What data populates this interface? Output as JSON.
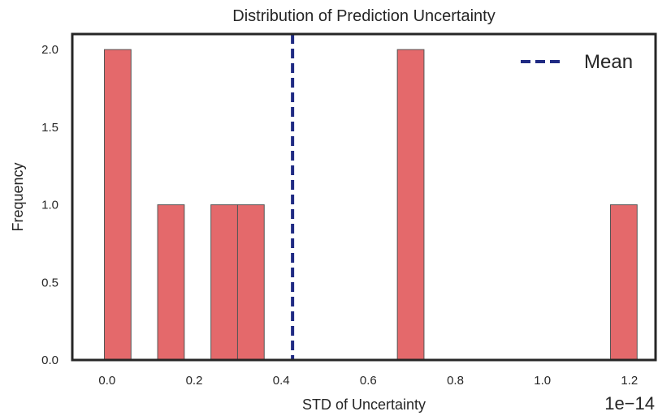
{
  "chart_data": {
    "type": "bar",
    "title": "Distribution of Prediction Uncertainty",
    "xlabel": "STD of Uncertainty",
    "ylabel": "Frequency",
    "x_offset_label": "1e−14",
    "xlim": [
      -0.08,
      1.26
    ],
    "ylim": [
      0,
      2.1
    ],
    "xticks": [
      0.0,
      0.2,
      0.4,
      0.6,
      0.8,
      1.0,
      1.2
    ],
    "xtick_labels": [
      "0.0",
      "0.2",
      "0.4",
      "0.6",
      "0.8",
      "1.0",
      "1.2"
    ],
    "yticks": [
      0.0,
      0.5,
      1.0,
      1.5,
      2.0
    ],
    "ytick_labels": [
      "0.0",
      "0.5",
      "1.0",
      "1.5",
      "2.0"
    ],
    "bins": [
      {
        "x0": -0.0063,
        "x1": 0.0549,
        "count": 2
      },
      {
        "x0": 0.1161,
        "x1": 0.1773,
        "count": 1
      },
      {
        "x0": 0.2385,
        "x1": 0.2997,
        "count": 1
      },
      {
        "x0": 0.2997,
        "x1": 0.3609,
        "count": 1
      },
      {
        "x0": 0.6668,
        "x1": 0.728,
        "count": 2
      },
      {
        "x0": 1.1564,
        "x1": 1.2176,
        "count": 1
      }
    ],
    "mean_line": {
      "x": 0.426,
      "label": "Mean",
      "color": "#1f2a83"
    },
    "bar_color": "#e4696b",
    "bar_edge_color": "#555555",
    "grid": false,
    "legend_position": "top-right"
  }
}
